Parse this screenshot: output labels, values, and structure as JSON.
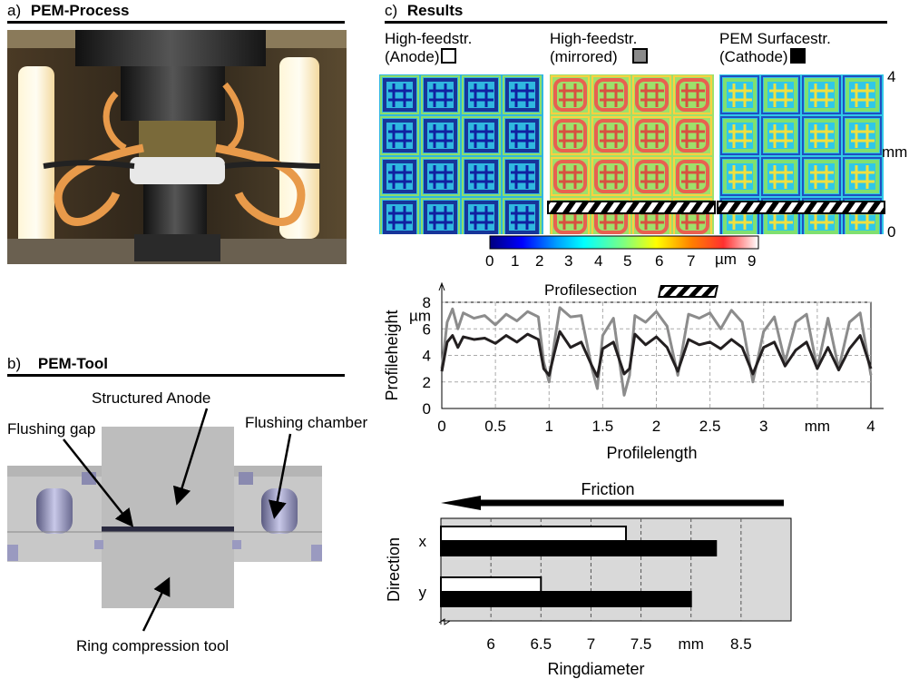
{
  "panel_a": {
    "letter": "a)",
    "title": "PEM-Process"
  },
  "panel_b": {
    "letter": "b)",
    "title": "PEM-Tool",
    "labels": {
      "structured_anode": "Structured Anode",
      "flushing_gap": "Flushing gap",
      "flushing_chamber": "Flushing chamber",
      "ring_compression_tool": "Ring compression tool"
    }
  },
  "panel_c": {
    "letter": "c)",
    "title": "Results",
    "maps": [
      {
        "line1": "High-feedstr.",
        "line2": "(Anode)",
        "swatch_color": "#ffffff"
      },
      {
        "line1": "High-feedstr.",
        "line2": "(mirrored)",
        "swatch_color": "#8a8a8a"
      },
      {
        "line1": "PEM Surfacestr.",
        "line2": "(Cathode)",
        "swatch_color": "#000000"
      }
    ],
    "map_axis": {
      "top": "4",
      "unit": "mm",
      "bottom": "0"
    },
    "colorbar": {
      "ticks": [
        "0",
        "1",
        "2",
        "3",
        "4",
        "5",
        "6",
        "7",
        "9"
      ],
      "unit": "µm",
      "colors": [
        "#00007f",
        "#0000ff",
        "#00a0ff",
        "#00ffff",
        "#7fff7f",
        "#ffff00",
        "#ff8000",
        "#ff3030",
        "#ffffff"
      ]
    }
  },
  "chart_data": [
    {
      "type": "line",
      "title": "Profilesection",
      "xlabel": "Profilelength",
      "ylabel": "Profileheight",
      "x_unit": "mm",
      "y_unit": "µm",
      "xlim": [
        0,
        4
      ],
      "ylim": [
        0,
        8
      ],
      "x_ticks": [
        "0",
        "0.5",
        "1",
        "1.5",
        "2",
        "2.5",
        "3",
        "mm",
        "4"
      ],
      "y_ticks": [
        "0",
        "2",
        "4",
        "6",
        "8"
      ],
      "grid": true,
      "series": [
        {
          "color": "#8c8c8c",
          "x": [
            0,
            0.05,
            0.1,
            0.15,
            0.2,
            0.3,
            0.4,
            0.5,
            0.6,
            0.7,
            0.8,
            0.9,
            0.95,
            1.0,
            1.05,
            1.1,
            1.2,
            1.3,
            1.4,
            1.45,
            1.5,
            1.6,
            1.7,
            1.75,
            1.8,
            1.9,
            2.0,
            2.1,
            2.2,
            2.3,
            2.4,
            2.5,
            2.6,
            2.7,
            2.8,
            2.9,
            3.0,
            3.1,
            3.2,
            3.3,
            3.4,
            3.5,
            3.6,
            3.7,
            3.8,
            3.9,
            4.0
          ],
          "y": [
            3.0,
            6.5,
            7.5,
            6.0,
            7.2,
            6.8,
            7.0,
            6.3,
            7.1,
            6.6,
            7.3,
            6.9,
            3.5,
            2.0,
            5.0,
            7.6,
            6.9,
            7.0,
            3.0,
            1.5,
            5.5,
            6.8,
            1.0,
            2.5,
            7.0,
            6.5,
            7.3,
            6.2,
            2.5,
            7.1,
            6.8,
            7.2,
            6.0,
            7.4,
            6.5,
            2.0,
            5.8,
            6.9,
            3.5,
            6.5,
            7.1,
            3.0,
            6.8,
            3.0,
            6.5,
            7.2,
            2.5
          ]
        },
        {
          "color": "#231f20",
          "x": [
            0,
            0.05,
            0.1,
            0.15,
            0.2,
            0.3,
            0.4,
            0.5,
            0.6,
            0.7,
            0.8,
            0.9,
            0.95,
            1.0,
            1.05,
            1.1,
            1.2,
            1.3,
            1.4,
            1.45,
            1.5,
            1.6,
            1.7,
            1.75,
            1.8,
            1.9,
            2.0,
            2.1,
            2.2,
            2.3,
            2.4,
            2.5,
            2.6,
            2.7,
            2.8,
            2.9,
            3.0,
            3.1,
            3.2,
            3.3,
            3.4,
            3.5,
            3.6,
            3.7,
            3.8,
            3.9,
            4.0
          ],
          "y": [
            2.8,
            5.0,
            5.5,
            4.6,
            5.4,
            5.2,
            5.3,
            4.9,
            5.5,
            5.0,
            5.6,
            5.2,
            3.0,
            2.5,
            4.2,
            5.8,
            4.6,
            5.0,
            3.2,
            2.4,
            4.5,
            5.0,
            2.6,
            3.0,
            5.6,
            4.8,
            5.4,
            4.6,
            2.8,
            5.2,
            4.8,
            5.0,
            4.5,
            5.2,
            4.6,
            2.6,
            4.6,
            5.0,
            3.2,
            4.4,
            5.0,
            3.0,
            4.6,
            2.9,
            4.5,
            5.5,
            3.0
          ]
        }
      ]
    },
    {
      "type": "bar",
      "orientation": "horizontal",
      "title": "Friction",
      "xlabel": "Ringdiameter",
      "ylabel": "Direction",
      "x_unit": "mm",
      "x_ticks": [
        "6",
        "6.5",
        "7",
        "7.5",
        "mm",
        "8.5"
      ],
      "xlim": [
        5.5,
        9.0
      ],
      "categories": [
        "x",
        "y"
      ],
      "series": [
        {
          "color": "#ffffff",
          "values": [
            7.35,
            6.5
          ]
        },
        {
          "color": "#000000",
          "values": [
            8.25,
            8.0
          ]
        }
      ]
    }
  ]
}
